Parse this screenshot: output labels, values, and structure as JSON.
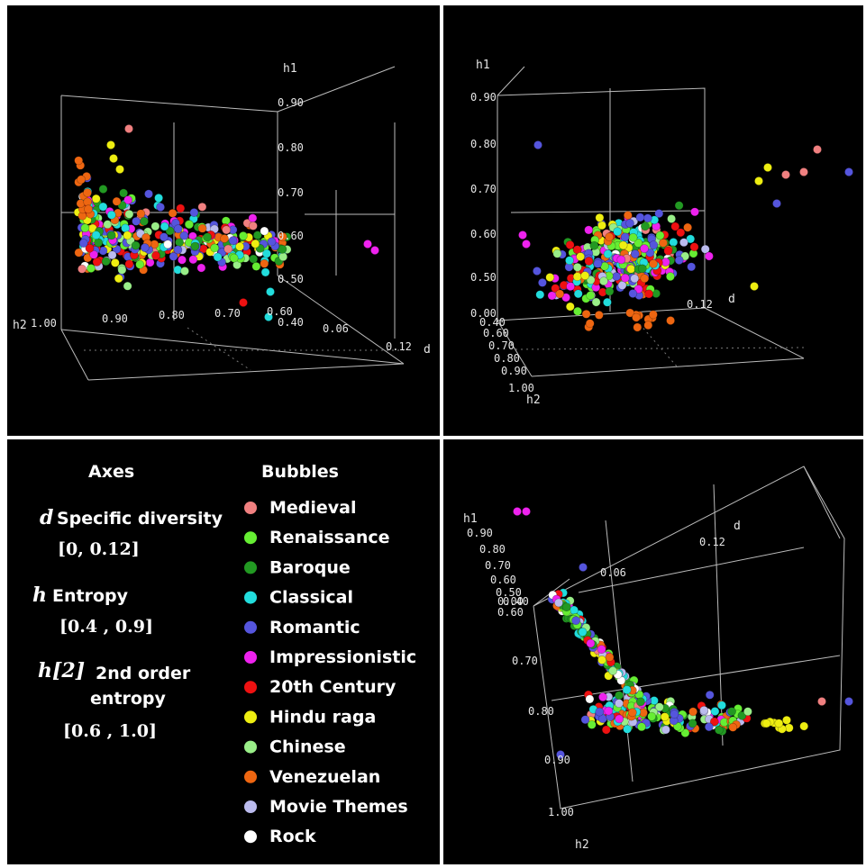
{
  "views": [
    {
      "axis_names": {
        "h1": "h1",
        "h2": "h2",
        "d": "d"
      },
      "h1_ticks": [
        "0.90",
        "0.80",
        "0.70",
        "0.60",
        "0.50",
        "0.40"
      ],
      "h2_ticks": [
        "1.00",
        "0.90",
        "0.80",
        "0.70",
        "0.60"
      ],
      "d_ticks": [
        "0.06",
        "0.12"
      ]
    },
    {
      "axis_names": {
        "h1": "h1",
        "h2": "h2",
        "d": "d"
      },
      "h1_ticks": [
        "0.90",
        "0.80",
        "0.70",
        "0.60",
        "0.50",
        "0.00"
      ],
      "h2_ticks": [
        "0.40",
        "0.60",
        "0.70",
        "0.80",
        "0.90",
        "1.00"
      ],
      "d_ticks": [
        "0.12"
      ]
    },
    {
      "axis_names": {
        "h1": "h1",
        "h2": "h2",
        "d": "d"
      },
      "h1_ticks": [
        "0.90",
        "0.80",
        "0.70",
        "0.60",
        "0.50",
        "0.40"
      ],
      "h2_ticks": [
        "0.60",
        "0.70",
        "0.80",
        "0.90",
        "1.00"
      ],
      "d_ticks": [
        "0.06",
        "0.12"
      ],
      "stray_tick": "0.00"
    }
  ],
  "axes_legend": {
    "heading": "Axes",
    "items": [
      {
        "symbol": "d",
        "label": "Specific diversity",
        "range": "[0, 0.12]"
      },
      {
        "symbol": "h",
        "label": "Entropy",
        "range": "[0.4 , 0.9]"
      },
      {
        "symbol": "h[2]",
        "label": "2nd order",
        "label2": "entropy",
        "range": "[0.6 , 1.0]"
      }
    ]
  },
  "bubbles_legend": {
    "heading": "Bubbles",
    "items": [
      {
        "label": "Medieval",
        "color": "#f08080"
      },
      {
        "label": "Renaissance",
        "color": "#66ee33"
      },
      {
        "label": "Baroque",
        "color": "#229922"
      },
      {
        "label": "Classical",
        "color": "#22dddd"
      },
      {
        "label": "Romantic",
        "color": "#5555dd"
      },
      {
        "label": "Impressionistic",
        "color": "#ee22ee"
      },
      {
        "label": "20th Century",
        "color": "#ee1111"
      },
      {
        "label": "Hindu raga",
        "color": "#eeee11"
      },
      {
        "label": "Chinese",
        "color": "#99ee88"
      },
      {
        "label": "Venezuelan",
        "color": "#ee6611"
      },
      {
        "label": "Movie Themes",
        "color": "#bbbbee"
      },
      {
        "label": "Rock",
        "color": "#ffffff"
      }
    ]
  },
  "chart_data": {
    "type": "scatter",
    "dimensions": [
      "d",
      "h",
      "h[2]"
    ],
    "axis_ranges": {
      "d": [
        0,
        0.12
      ],
      "h": [
        0.4,
        0.9
      ],
      "h[2]": [
        0.6,
        1.0
      ]
    },
    "series_names": [
      "Medieval",
      "Renaissance",
      "Baroque",
      "Classical",
      "Romantic",
      "Impressionistic",
      "20th Century",
      "Hindu raga",
      "Chinese",
      "Venezuelan",
      "Movie Themes",
      "Rock"
    ],
    "note": ""
  }
}
